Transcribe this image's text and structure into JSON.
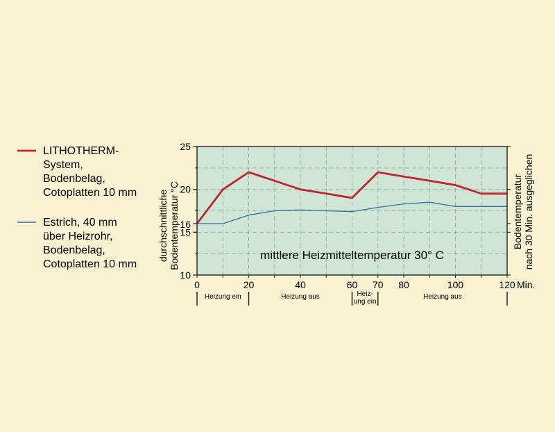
{
  "chart_data": {
    "type": "line",
    "x": [
      0,
      10,
      20,
      30,
      40,
      50,
      60,
      70,
      80,
      90,
      100,
      110,
      120
    ],
    "series": [
      {
        "name": "LITHOTHERM-System, Bodenbelag, Cotoplatten 10 mm",
        "name_lines": [
          "LITHOTHERM-",
          "System,",
          "Bodenbelag,",
          "Cotoplatten 10 mm"
        ],
        "color": "#c0252e",
        "values": [
          16,
          20,
          22,
          21,
          20,
          19.5,
          19,
          22,
          21.5,
          21,
          20.5,
          19.5,
          19.5
        ]
      },
      {
        "name": "Estrich, 40 mm über Heizrohr, Bodenbelag, Cotoplatten 10 mm",
        "name_lines": [
          "Estrich, 40 mm",
          "über Heizrohr,",
          "Bodenbelag,",
          "Cotoplatten 10 mm"
        ],
        "color": "#2f6fa8",
        "values": [
          16,
          16,
          17,
          17.5,
          17.6,
          17.5,
          17.4,
          17.9,
          18.3,
          18.5,
          18,
          18,
          18
        ]
      }
    ],
    "xlim": [
      0,
      120
    ],
    "ylim": [
      10,
      25
    ],
    "x_ticks": [
      "0",
      "20",
      "40",
      "60",
      "70",
      "80",
      "100",
      "120"
    ],
    "x_tick_values": [
      0,
      20,
      40,
      60,
      70,
      80,
      100,
      120
    ],
    "x_unit": "Min.",
    "y_ticks": [
      "10",
      "15",
      "16",
      "20",
      "25"
    ],
    "y_tick_values": [
      10,
      15,
      16,
      20,
      25
    ],
    "ylabel_lines": [
      "durchschnittliche",
      "Bodentemperatur °C"
    ],
    "y2label_lines": [
      "Bodentemperatur",
      "nach 30 Min. ausgeglichen"
    ],
    "annotation": "mittlere Heizmitteltemperatur 30° C",
    "phases": [
      {
        "label_lines": [
          "Heizung ein"
        ],
        "from": 0,
        "to": 20
      },
      {
        "label_lines": [
          "Heizung aus"
        ],
        "from": 20,
        "to": 60
      },
      {
        "label_lines": [
          "Heiz-",
          "ung ein"
        ],
        "from": 60,
        "to": 70
      },
      {
        "label_lines": [
          "Heizung aus"
        ],
        "from": 70,
        "to": 120
      }
    ],
    "grid": true,
    "legend_position": "left",
    "colors": {
      "background": "#f8f1d2",
      "plot_background": "#cfe6d6",
      "grid": "#8fb89a"
    }
  }
}
